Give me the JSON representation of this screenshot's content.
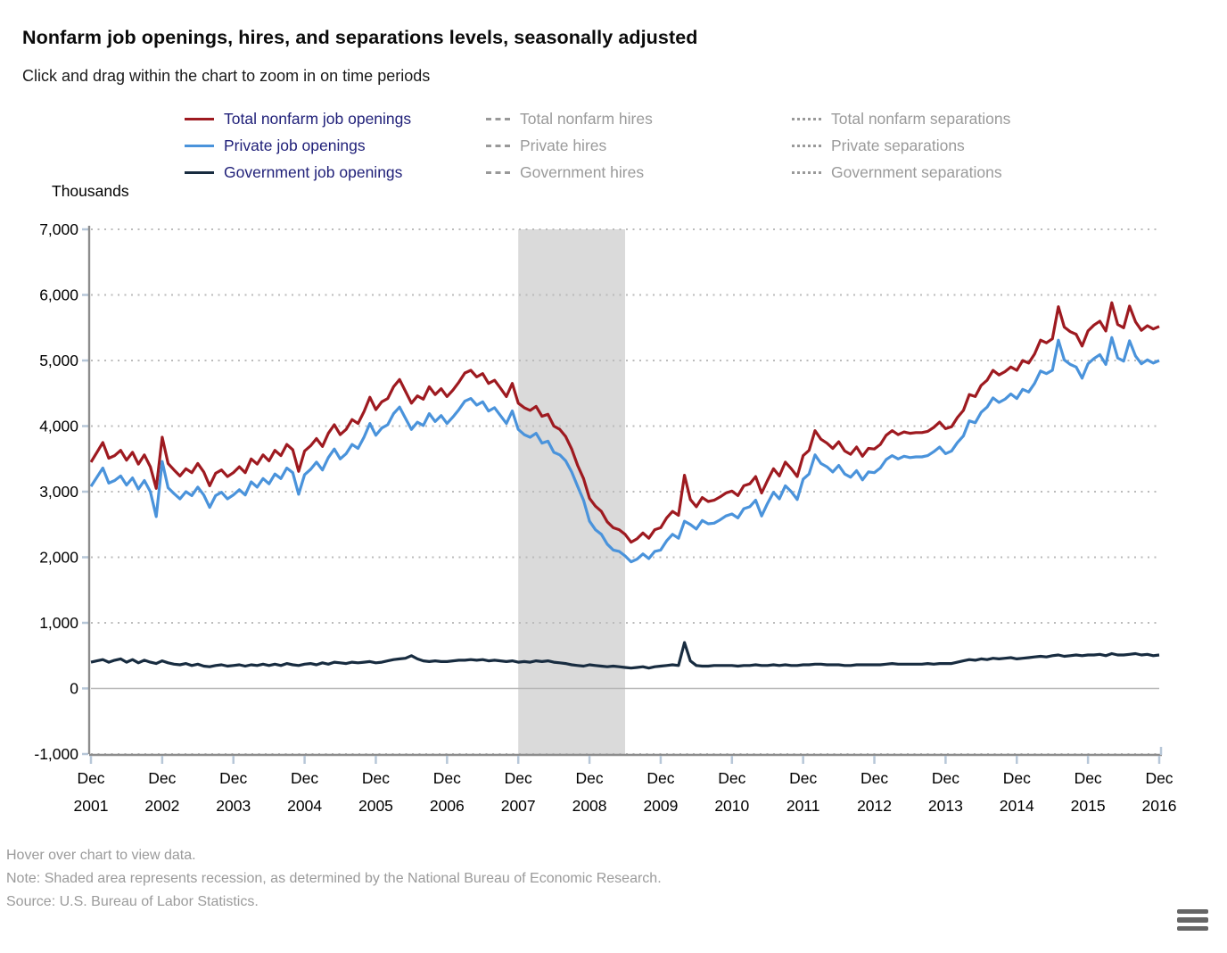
{
  "header": {
    "title": "Nonfarm job openings, hires, and separations levels, seasonally adjusted",
    "subtitle": "Click and drag within the chart to zoom in on time periods"
  },
  "legend": {
    "items": [
      {
        "label": "Total nonfarm job openings",
        "swatch": "solid",
        "color": "#9e1a20",
        "state": "active"
      },
      {
        "label": "Private job openings",
        "swatch": "solid",
        "color": "#4a93db",
        "state": "active"
      },
      {
        "label": "Government job openings",
        "swatch": "solid",
        "color": "#182c40",
        "state": "active"
      },
      {
        "label": "Total nonfarm hires",
        "swatch": "dashed",
        "color": "#999999",
        "state": "inactive"
      },
      {
        "label": "Private hires",
        "swatch": "dashed",
        "color": "#999999",
        "state": "inactive"
      },
      {
        "label": "Government hires",
        "swatch": "dashed",
        "color": "#999999",
        "state": "inactive"
      },
      {
        "label": "Total nonfarm separations",
        "swatch": "dotted",
        "color": "#999999",
        "state": "inactive"
      },
      {
        "label": "Private separations",
        "swatch": "dotted",
        "color": "#999999",
        "state": "inactive"
      },
      {
        "label": "Government separations",
        "swatch": "dotted",
        "color": "#999999",
        "state": "inactive"
      }
    ]
  },
  "axis": {
    "unit_label": "Thousands"
  },
  "chart_data": {
    "type": "line",
    "title": "Nonfarm job openings, hires, and separations levels, seasonally adjusted",
    "ylabel": "Thousands",
    "ylim": [
      -1000,
      7000
    ],
    "ytick_step": 1000,
    "y_tick_labels": [
      "7,000",
      "6,000",
      "5,000",
      "4,000",
      "3,000",
      "2,000",
      "1,000",
      "0",
      "-1,000"
    ],
    "x_frequency": "monthly",
    "x_start": "Dec 2001",
    "x_end": "Dec 2016",
    "x_tick_month": "Dec",
    "x_tick_years": [
      "2001",
      "2002",
      "2003",
      "2004",
      "2005",
      "2006",
      "2007",
      "2008",
      "2009",
      "2010",
      "2011",
      "2012",
      "2013",
      "2014",
      "2015",
      "2016"
    ],
    "grid": "horizontal-dotted",
    "legend_position": "top",
    "recession_band": {
      "start_month_index": 72,
      "end_month_index": 90,
      "start": "Dec 2007",
      "end": "Jun 2009",
      "color": "#dadada"
    },
    "colors": {
      "total": "#9e1a20",
      "private": "#4a93db",
      "government": "#182c40",
      "axis": "#8c8c8c",
      "gridline": "#bbbbbb",
      "zero_line": "#b5b5b5",
      "tick": "#b7c7d8"
    },
    "series": [
      {
        "name": "Total nonfarm job openings",
        "style": "solid",
        "visible": true,
        "color": "#9e1a20",
        "values": [
          3450,
          3600,
          3750,
          3510,
          3550,
          3630,
          3480,
          3600,
          3420,
          3560,
          3380,
          3050,
          3830,
          3430,
          3330,
          3240,
          3350,
          3290,
          3430,
          3300,
          3090,
          3280,
          3330,
          3230,
          3290,
          3380,
          3290,
          3500,
          3420,
          3560,
          3470,
          3630,
          3550,
          3720,
          3640,
          3310,
          3620,
          3700,
          3810,
          3690,
          3890,
          4020,
          3870,
          3950,
          4100,
          4040,
          4220,
          4440,
          4250,
          4370,
          4420,
          4600,
          4710,
          4530,
          4350,
          4460,
          4410,
          4600,
          4480,
          4570,
          4450,
          4550,
          4670,
          4810,
          4850,
          4750,
          4800,
          4650,
          4700,
          4580,
          4450,
          4650,
          4350,
          4280,
          4240,
          4300,
          4150,
          4180,
          4000,
          3950,
          3840,
          3650,
          3400,
          3200,
          2900,
          2780,
          2700,
          2540,
          2450,
          2420,
          2350,
          2230,
          2280,
          2370,
          2290,
          2420,
          2450,
          2600,
          2700,
          2640,
          3250,
          2880,
          2770,
          2910,
          2850,
          2870,
          2920,
          2980,
          3010,
          2940,
          3090,
          3120,
          3230,
          2980,
          3170,
          3350,
          3240,
          3450,
          3350,
          3230,
          3550,
          3630,
          3930,
          3800,
          3740,
          3660,
          3760,
          3620,
          3570,
          3680,
          3540,
          3660,
          3650,
          3720,
          3860,
          3930,
          3870,
          3910,
          3890,
          3900,
          3900,
          3920,
          3980,
          4060,
          3960,
          3990,
          4130,
          4240,
          4480,
          4450,
          4620,
          4700,
          4850,
          4780,
          4830,
          4900,
          4850,
          5000,
          4960,
          5100,
          5310,
          5270,
          5330,
          5820,
          5510,
          5440,
          5400,
          5220,
          5450,
          5540,
          5600,
          5450,
          5880,
          5550,
          5500,
          5830,
          5590,
          5460,
          5530,
          5480,
          5520
        ]
      },
      {
        "name": "Private job openings",
        "style": "solid",
        "visible": true,
        "color": "#4a93db",
        "values": [
          3080,
          3220,
          3360,
          3130,
          3170,
          3240,
          3100,
          3210,
          3040,
          3170,
          3000,
          2620,
          3460,
          3060,
          2970,
          2890,
          3000,
          2940,
          3070,
          2950,
          2760,
          2940,
          2990,
          2890,
          2950,
          3030,
          2950,
          3150,
          3070,
          3200,
          3120,
          3270,
          3200,
          3360,
          3290,
          2960,
          3260,
          3340,
          3450,
          3330,
          3520,
          3650,
          3500,
          3580,
          3720,
          3660,
          3830,
          4040,
          3860,
          3970,
          4020,
          4190,
          4290,
          4120,
          3950,
          4060,
          4010,
          4190,
          4070,
          4160,
          4040,
          4140,
          4250,
          4380,
          4420,
          4320,
          4370,
          4230,
          4280,
          4160,
          4040,
          4230,
          3950,
          3870,
          3830,
          3890,
          3740,
          3770,
          3600,
          3560,
          3470,
          3300,
          3080,
          2870,
          2550,
          2420,
          2350,
          2200,
          2110,
          2090,
          2020,
          1930,
          1970,
          2050,
          1980,
          2090,
          2110,
          2250,
          2350,
          2290,
          2550,
          2500,
          2430,
          2560,
          2510,
          2520,
          2570,
          2630,
          2660,
          2600,
          2740,
          2770,
          2870,
          2630,
          2820,
          2990,
          2890,
          3090,
          3000,
          2880,
          3190,
          3270,
          3560,
          3430,
          3380,
          3300,
          3400,
          3270,
          3220,
          3320,
          3180,
          3300,
          3290,
          3360,
          3490,
          3550,
          3500,
          3540,
          3520,
          3530,
          3530,
          3550,
          3610,
          3680,
          3580,
          3620,
          3750,
          3850,
          4080,
          4050,
          4210,
          4290,
          4430,
          4360,
          4410,
          4490,
          4420,
          4560,
          4520,
          4650,
          4840,
          4800,
          4850,
          5310,
          5010,
          4940,
          4900,
          4730,
          4950,
          5030,
          5090,
          4940,
          5350,
          5040,
          4990,
          5300,
          5070,
          4950,
          5010,
          4960,
          5000
        ]
      },
      {
        "name": "Government job openings",
        "style": "solid",
        "visible": true,
        "color": "#182c40",
        "values": [
          400,
          420,
          440,
          400,
          430,
          450,
          400,
          440,
          390,
          430,
          400,
          380,
          420,
          390,
          370,
          360,
          380,
          350,
          370,
          340,
          330,
          350,
          360,
          340,
          350,
          360,
          340,
          360,
          350,
          370,
          350,
          370,
          350,
          380,
          360,
          350,
          370,
          380,
          360,
          390,
          370,
          400,
          390,
          380,
          400,
          390,
          400,
          410,
          390,
          400,
          420,
          440,
          450,
          460,
          500,
          450,
          420,
          410,
          420,
          410,
          410,
          420,
          430,
          430,
          440,
          430,
          440,
          420,
          430,
          420,
          410,
          420,
          400,
          410,
          400,
          420,
          410,
          420,
          400,
          390,
          380,
          360,
          350,
          340,
          360,
          350,
          340,
          330,
          340,
          330,
          320,
          310,
          320,
          330,
          310,
          330,
          340,
          350,
          360,
          350,
          700,
          420,
          350,
          340,
          340,
          350,
          350,
          350,
          350,
          340,
          350,
          350,
          360,
          350,
          350,
          360,
          350,
          360,
          350,
          350,
          360,
          360,
          370,
          370,
          360,
          360,
          360,
          350,
          350,
          360,
          360,
          360,
          360,
          360,
          370,
          380,
          370,
          370,
          370,
          370,
          370,
          380,
          370,
          380,
          380,
          380,
          400,
          420,
          440,
          430,
          450,
          440,
          460,
          450,
          460,
          470,
          450,
          460,
          470,
          480,
          490,
          480,
          500,
          510,
          490,
          500,
          510,
          500,
          510,
          510,
          520,
          500,
          530,
          510,
          510,
          520,
          530,
          510,
          520,
          500,
          510
        ]
      },
      {
        "name": "Total nonfarm hires",
        "style": "dashed",
        "visible": false
      },
      {
        "name": "Private hires",
        "style": "dashed",
        "visible": false
      },
      {
        "name": "Government hires",
        "style": "dashed",
        "visible": false
      },
      {
        "name": "Total nonfarm separations",
        "style": "dotted",
        "visible": false
      },
      {
        "name": "Private separations",
        "style": "dotted",
        "visible": false
      },
      {
        "name": "Government separations",
        "style": "dotted",
        "visible": false
      }
    ]
  },
  "footer": {
    "lines": [
      "Hover over chart to view data.",
      "Note: Shaded area represents recession, as determined by the National Bureau of Economic Research.",
      "Source: U.S. Bureau of Labor Statistics."
    ]
  }
}
